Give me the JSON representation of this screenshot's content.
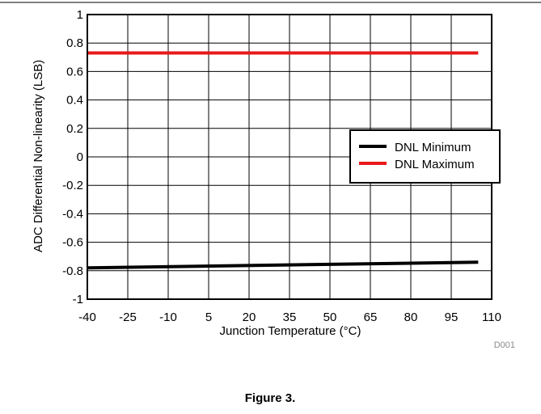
{
  "chart_data": {
    "type": "line",
    "xlabel": "Junction Temperature (°C)",
    "ylabel": "ADC Differential Non-linearity (LSB)",
    "xlim": [
      -40,
      110
    ],
    "ylim": [
      -1,
      1
    ],
    "xticks": [
      -40,
      -25,
      -10,
      5,
      20,
      35,
      50,
      65,
      80,
      95,
      110
    ],
    "yticks": [
      -1,
      -0.8,
      -0.6,
      -0.4,
      -0.2,
      0,
      0.2,
      0.4,
      0.6,
      0.8,
      1
    ],
    "x_tick_labels": [
      "-40",
      "-25",
      "-10",
      "5",
      "20",
      "35",
      "50",
      "65",
      "80",
      "95",
      "110"
    ],
    "y_tick_labels": [
      "-1",
      "-0.8",
      "-0.6",
      "-0.4",
      "-0.2",
      "0",
      "0.2",
      "0.4",
      "0.6",
      "0.8",
      "1"
    ],
    "grid": true,
    "legend_position": "right",
    "series": [
      {
        "name": "DNL Minimum",
        "color": "#000000",
        "x": [
          -40,
          105
        ],
        "y": [
          -0.78,
          -0.74
        ]
      },
      {
        "name": "DNL Maximum",
        "color": "#e8191b",
        "x": [
          -40,
          105
        ],
        "y": [
          0.73,
          0.73
        ]
      }
    ],
    "annotation": "D001",
    "caption": "Figure 3."
  }
}
